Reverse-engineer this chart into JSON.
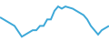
{
  "y_values": [
    38,
    36,
    34,
    32,
    30,
    25,
    20,
    22,
    24,
    26,
    26,
    30,
    30,
    36,
    36,
    44,
    48,
    46,
    48,
    47,
    46,
    44,
    42,
    40,
    36,
    30,
    26,
    22,
    26,
    28,
    30
  ],
  "line_color": "#3da8d8",
  "line_width": 1.4,
  "background_color": "#ffffff",
  "ylim": [
    16,
    54
  ],
  "xlim": [
    0,
    30
  ]
}
